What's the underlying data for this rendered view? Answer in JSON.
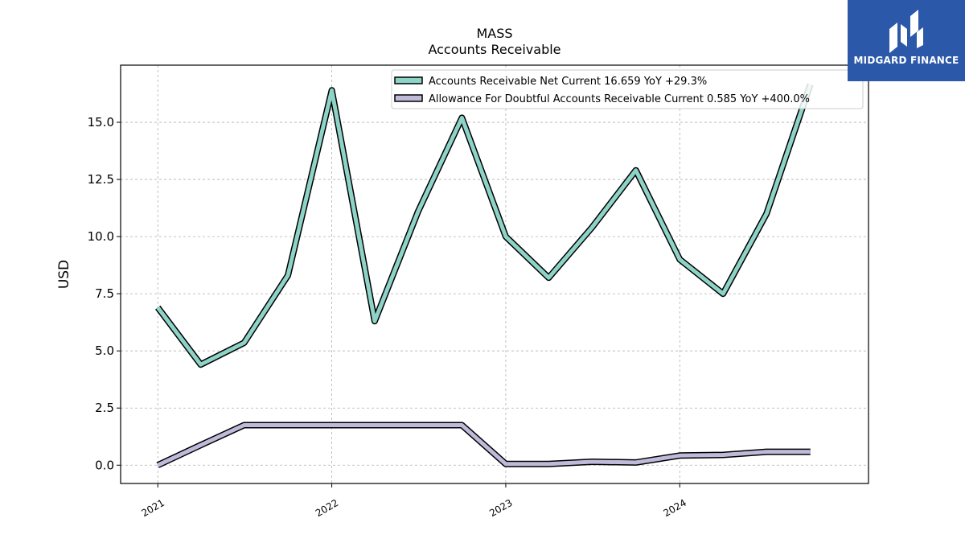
{
  "branding": {
    "logo_text": "MIDGARD FINANCE"
  },
  "chart_data": {
    "type": "line",
    "title": "MASS",
    "subtitle": "Accounts Receivable",
    "xlabel": "",
    "ylabel": "USD",
    "ylim": [
      -0.8,
      17.5
    ],
    "xlim": [
      "2020-10-15",
      "2025-01-31"
    ],
    "yticks": [
      0.0,
      2.5,
      5.0,
      7.5,
      10.0,
      12.5,
      15.0
    ],
    "ytick_labels": [
      "0.0",
      "2.5",
      "5.0",
      "7.5",
      "10.0",
      "12.5",
      "15.0"
    ],
    "xticks": [
      "2021-01-01",
      "2022-01-01",
      "2023-01-01",
      "2024-01-01"
    ],
    "xtick_labels": [
      "2021",
      "2022",
      "2023",
      "2024"
    ],
    "grid": true,
    "legend_position": "top-right",
    "x": [
      "2021-01-01",
      "2021-04-01",
      "2021-07-01",
      "2021-10-01",
      "2022-01-01",
      "2022-04-01",
      "2022-07-01",
      "2022-10-01",
      "2023-01-01",
      "2023-04-01",
      "2023-07-01",
      "2023-10-01",
      "2024-01-01",
      "2024-04-01",
      "2024-07-01",
      "2024-10-01"
    ],
    "series": [
      {
        "name": "Accounts Receivable Net Current",
        "legend": "Accounts Receivable Net Current  16.659 YoY +29.3%",
        "color": "#8dd3c7",
        "values": [
          6.9,
          4.4,
          5.35,
          8.3,
          16.4,
          6.3,
          11.1,
          15.2,
          10.0,
          8.2,
          10.4,
          12.9,
          9.0,
          7.5,
          11.0,
          16.659
        ]
      },
      {
        "name": "Allowance For Doubtful Accounts Receivable Current",
        "legend": "Allowance For Doubtful Accounts Receivable Current  0.585 YoY +400.0%",
        "color": "#bebada",
        "values": [
          0.0,
          0.88,
          1.75,
          1.75,
          1.75,
          1.75,
          1.75,
          1.75,
          0.05,
          0.05,
          0.15,
          0.12,
          0.42,
          0.45,
          0.585,
          0.585
        ]
      }
    ]
  }
}
